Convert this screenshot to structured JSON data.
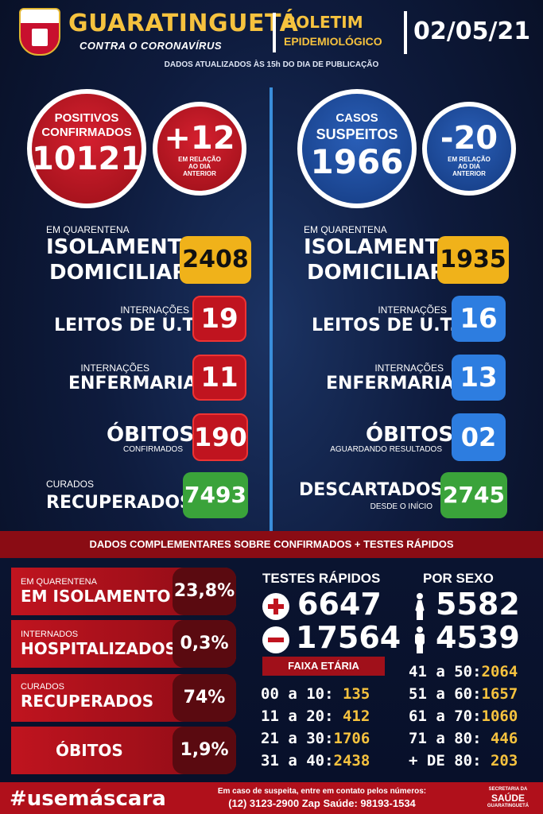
{
  "header": {
    "city": "GUARATINGUETÁ",
    "subtitle": "CONTRA O CORONAVÍRUS",
    "bulletin_1": "BOLETIM",
    "bulletin_2": "EPIDEMIOLÓGICO",
    "date": "02/05/21",
    "updated_note": "DADOS ATUALIZADOS ÀS 15h DO DIA DE PUBLICAÇÃO"
  },
  "confirmed": {
    "label_1": "POSITIVOS",
    "label_2": "CONFIRMADOS",
    "value": "10121",
    "delta": "+12",
    "delta_note_1": "EM RELAÇÃO",
    "delta_note_2": "AO DIA",
    "delta_note_3": "ANTERIOR",
    "quarantine_small": "EM QUARENTENA",
    "quarantine_1": "ISOLAMENTO",
    "quarantine_2": "DOMICILIAR:",
    "quarantine_value": "2408",
    "icu_small": "INTERNAÇÕES",
    "icu_label": "LEITOS DE U.T.I:",
    "icu_value": "19",
    "ward_small": "INTERNAÇÕES",
    "ward_label": "ENFERMARIA:",
    "ward_value": "11",
    "deaths_label": "ÓBITOS:",
    "deaths_small": "CONFIRMADOS",
    "deaths_value": "190",
    "cured_small": "CURADOS",
    "cured_label": "RECUPERADOS:",
    "cured_value": "7493"
  },
  "suspected": {
    "label_1": "CASOS",
    "label_2": "SUSPEITOS",
    "value": "1966",
    "delta": "-20",
    "delta_note_1": "EM RELAÇÃO",
    "delta_note_2": "AO DIA",
    "delta_note_3": "ANTERIOR",
    "quarantine_small": "EM QUARENTENA",
    "quarantine_1": "ISOLAMENTO",
    "quarantine_2": "DOMICILIAR:",
    "quarantine_value": "1935",
    "icu_small": "INTERNAÇÕES",
    "icu_label": "LEITOS DE U.T.I:",
    "icu_value": "16",
    "ward_small": "INTERNAÇÕES",
    "ward_label": "ENFERMARIA:",
    "ward_value": "13",
    "deaths_label": "ÓBITOS:",
    "deaths_small": "AGUARDANDO RESULTADOS",
    "deaths_value": "02",
    "discarded_label": "DESCARTADOS:",
    "discarded_small": "DESDE O INÍCIO",
    "discarded_value": "2745"
  },
  "complementary": {
    "title": "DADOS COMPLEMENTARES SOBRE CONFIRMADOS + TESTES RÁPIDOS",
    "bars": [
      {
        "small": "EM QUARENTENA",
        "big": "EM ISOLAMENTO",
        "pct": "23,8%"
      },
      {
        "small": "INTERNADOS",
        "big": "HOSPITALIZADOS",
        "pct": "0,3%"
      },
      {
        "small": "CURADOS",
        "big": "RECUPERADOS",
        "pct": "74%"
      },
      {
        "small": "",
        "big": "ÓBITOS",
        "pct": "1,9%"
      }
    ],
    "rapid_title": "TESTES RÁPIDOS",
    "rapid_positive": "6647",
    "rapid_negative": "17564",
    "sex_title": "POR SEXO",
    "sex_female": "5582",
    "sex_male": "4539",
    "age_title": "FAIXA ETÁRIA",
    "ages_left": [
      {
        "range": "00 a 10:",
        "value": " 135"
      },
      {
        "range": "11 a 20:",
        "value": " 412"
      },
      {
        "range": "21 a 30:",
        "value": "1706"
      },
      {
        "range": "31 a 40:",
        "value": "2438"
      }
    ],
    "ages_right": [
      {
        "range": "41 a 50:",
        "value": "2064"
      },
      {
        "range": "51 a 60:",
        "value": "1657"
      },
      {
        "range": "61 a 70:",
        "value": "1060"
      },
      {
        "range": "71 a 80:",
        "value": " 446"
      },
      {
        "range": "+ DE 80:",
        "value": " 203"
      }
    ]
  },
  "footer": {
    "hashtag": "#usemáscara",
    "contact_1": "Em caso de suspeita, entre em contato pelos números:",
    "contact_2": "(12) 3123-2900 Zap Saúde: 98193-1534",
    "sec_1": "SECRETARIA DA",
    "sec_2": "SAÚDE",
    "sec_3": "GUARATINGUETÁ"
  }
}
